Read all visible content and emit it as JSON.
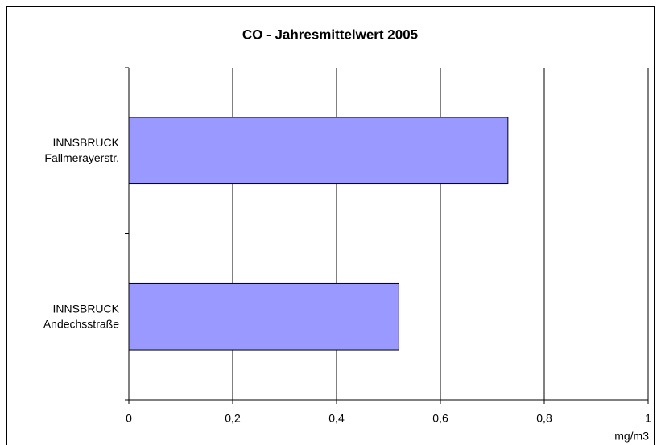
{
  "chart_data": {
    "type": "barh",
    "title": "CO - Jahresmittelwert 2005",
    "categories": [
      [
        "INNSBRUCK",
        "Fallmerayerstr."
      ],
      [
        "INNSBRUCK",
        "Andechsstraße"
      ]
    ],
    "values": [
      0.73,
      0.52
    ],
    "color": "#9999ff",
    "x_label": "mg/m3",
    "xlim": [
      0,
      1
    ],
    "xticks": [
      0,
      {
        "value": 0.2,
        "label": "0,2"
      },
      {
        "value": 0.4,
        "label": "0,4"
      },
      {
        "value": 0.6,
        "label": "0,6"
      },
      {
        "value": 0.8,
        "label": "0,8"
      },
      1
    ],
    "grid": true
  }
}
